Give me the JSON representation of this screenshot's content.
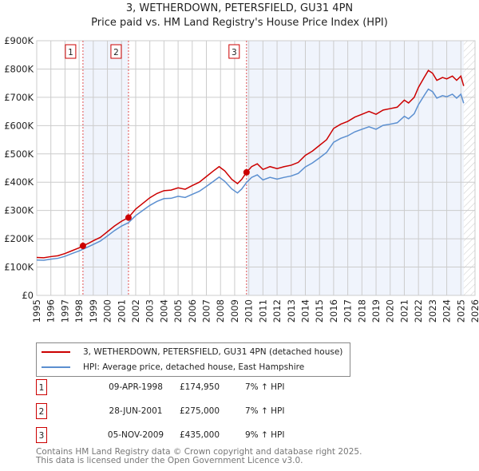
{
  "chart_data": {
    "type": "line",
    "title": "3, WETHERDOWN, PETERSFIELD, GU31 4PN",
    "subtitle": "Price paid vs. HM Land Registry's House Price Index (HPI)",
    "xlim": [
      1995,
      2026
    ],
    "ylim": [
      0,
      900000
    ],
    "x_ticks": [
      "1995",
      "1996",
      "1997",
      "1998",
      "1999",
      "2000",
      "2001",
      "2002",
      "2003",
      "2004",
      "2005",
      "2006",
      "2007",
      "2008",
      "2009",
      "2010",
      "2011",
      "2012",
      "2013",
      "2014",
      "2015",
      "2016",
      "2017",
      "2018",
      "2019",
      "2020",
      "2021",
      "2022",
      "2023",
      "2024",
      "2025",
      "2026"
    ],
    "y_ticks": [
      {
        "v": 0,
        "l": "£0"
      },
      {
        "v": 100000,
        "l": "£100K"
      },
      {
        "v": 200000,
        "l": "£200K"
      },
      {
        "v": 300000,
        "l": "£300K"
      },
      {
        "v": 400000,
        "l": "£400K"
      },
      {
        "v": 500000,
        "l": "£500K"
      },
      {
        "v": 600000,
        "l": "£600K"
      },
      {
        "v": 700000,
        "l": "£700K"
      },
      {
        "v": 800000,
        "l": "£800K"
      },
      {
        "v": 900000,
        "l": "£900K"
      }
    ],
    "grid": true,
    "series": [
      {
        "name": "3, WETHERDOWN, PETERSFIELD, GU31 4PN (detached house)",
        "color": "#cc0000",
        "x": [
          1995,
          1995.5,
          1996,
          1996.5,
          1997,
          1997.5,
          1998,
          1998.27,
          1998.7,
          1999,
          1999.5,
          2000,
          2000.5,
          2001,
          2001.49,
          2002,
          2002.5,
          2003,
          2003.5,
          2004,
          2004.5,
          2005,
          2005.5,
          2006,
          2006.5,
          2007,
          2007.5,
          2007.9,
          2008.3,
          2008.8,
          2009.2,
          2009.5,
          2009.84,
          2010.2,
          2010.6,
          2011,
          2011.5,
          2012,
          2012.5,
          2013,
          2013.5,
          2014,
          2014.5,
          2015,
          2015.5,
          2016,
          2016.5,
          2017,
          2017.5,
          2018,
          2018.5,
          2019,
          2019.5,
          2020,
          2020.5,
          2021,
          2021.3,
          2021.7,
          2022,
          2022.4,
          2022.7,
          2023,
          2023.3,
          2023.7,
          2024,
          2024.4,
          2024.7,
          2025,
          2025.2
        ],
        "y": [
          134000,
          133000,
          137000,
          140000,
          148000,
          158000,
          168000,
          174950,
          185000,
          193000,
          205000,
          225000,
          245000,
          262000,
          275000,
          305000,
          325000,
          345000,
          360000,
          370000,
          372000,
          380000,
          375000,
          388000,
          400000,
          420000,
          440000,
          455000,
          440000,
          410000,
          395000,
          410000,
          435000,
          455000,
          465000,
          445000,
          455000,
          448000,
          455000,
          460000,
          470000,
          495000,
          510000,
          530000,
          550000,
          590000,
          605000,
          615000,
          630000,
          640000,
          650000,
          640000,
          655000,
          660000,
          665000,
          690000,
          680000,
          700000,
          735000,
          770000,
          795000,
          785000,
          760000,
          770000,
          765000,
          775000,
          760000,
          775000,
          740000
        ]
      },
      {
        "name": "HPI: Average price, detached house, East Hampshire",
        "color": "#5b8fd0",
        "x": [
          1995,
          1995.5,
          1996,
          1996.5,
          1997,
          1997.5,
          1998,
          1998.27,
          1998.7,
          1999,
          1999.5,
          2000,
          2000.5,
          2001,
          2001.49,
          2002,
          2002.5,
          2003,
          2003.5,
          2004,
          2004.5,
          2005,
          2005.5,
          2006,
          2006.5,
          2007,
          2007.5,
          2007.9,
          2008.3,
          2008.8,
          2009.2,
          2009.5,
          2009.84,
          2010.2,
          2010.6,
          2011,
          2011.5,
          2012,
          2012.5,
          2013,
          2013.5,
          2014,
          2014.5,
          2015,
          2015.5,
          2016,
          2016.5,
          2017,
          2017.5,
          2018,
          2018.5,
          2019,
          2019.5,
          2020,
          2020.5,
          2021,
          2021.3,
          2021.7,
          2022,
          2022.4,
          2022.7,
          2023,
          2023.3,
          2023.7,
          2024,
          2024.4,
          2024.7,
          2025,
          2025.2
        ],
        "y": [
          125000,
          124000,
          128000,
          131000,
          138000,
          148000,
          157000,
          163000,
          173000,
          180000,
          192000,
          210000,
          229000,
          245000,
          257000,
          282000,
          300000,
          318000,
          332000,
          342000,
          343000,
          350000,
          346000,
          357000,
          368000,
          385000,
          403000,
          418000,
          403000,
          376000,
          362000,
          376000,
          399000,
          417000,
          426000,
          408000,
          417000,
          411000,
          417000,
          422000,
          431000,
          454000,
          468000,
          486000,
          505000,
          541000,
          555000,
          564000,
          578000,
          587000,
          596000,
          587000,
          601000,
          605000,
          610000,
          633000,
          624000,
          642000,
          674000,
          706000,
          729000,
          720000,
          697000,
          706000,
          702000,
          711000,
          697000,
          711000,
          679000
        ]
      }
    ],
    "sales": [
      {
        "id": "1",
        "x": 1998.27,
        "y": 174950,
        "date": "09-APR-1998",
        "price": "£174,950",
        "hpi": "7% ↑ HPI"
      },
      {
        "id": "2",
        "x": 2001.49,
        "y": 275000,
        "date": "28-JUN-2001",
        "price": "£275,000",
        "hpi": "7% ↑ HPI"
      },
      {
        "id": "3",
        "x": 2009.84,
        "y": 435000,
        "date": "05-NOV-2009",
        "price": "£435,000",
        "hpi": "9% ↑ HPI"
      }
    ],
    "legend_placement": "bottom"
  },
  "footer": {
    "line1": "Contains HM Land Registry data © Crown copyright and database right 2025.",
    "line2": "This data is licensed under the Open Government Licence v3.0."
  }
}
